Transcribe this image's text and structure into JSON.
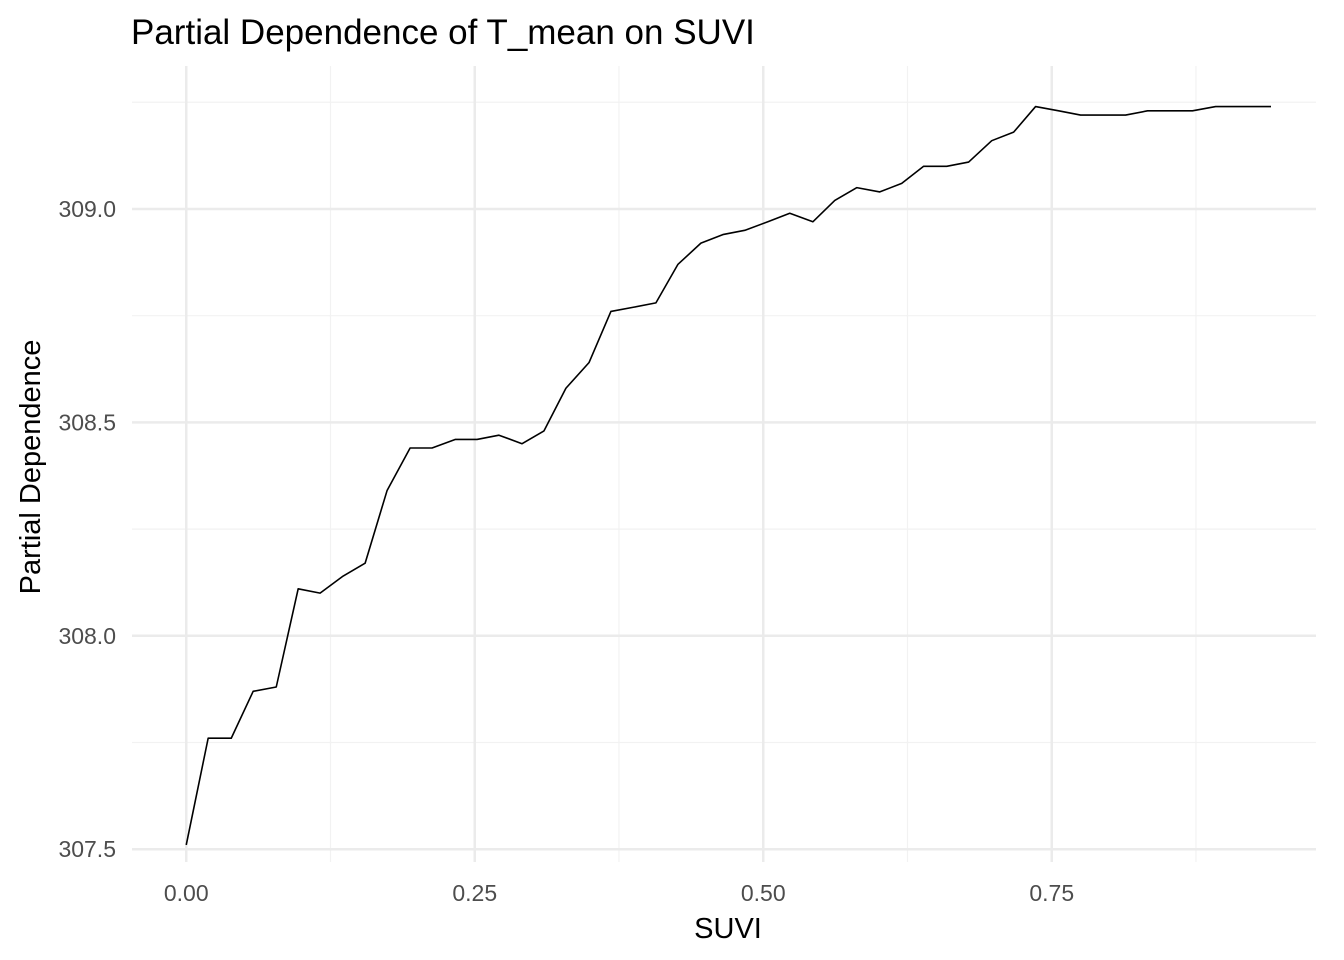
{
  "chart_data": {
    "type": "line",
    "title": "Partial Dependence of T_mean on SUVI",
    "xlabel": "SUVI",
    "ylabel": "Partial Dependence",
    "xlim": [
      -0.047,
      0.979
    ],
    "ylim": [
      307.47,
      309.335
    ],
    "x_ticks": [
      0.0,
      0.25,
      0.5,
      0.75
    ],
    "x_tick_labels": [
      "0.00",
      "0.25",
      "0.50",
      "0.75"
    ],
    "y_ticks": [
      307.5,
      308.0,
      308.5,
      309.0
    ],
    "y_tick_labels": [
      "307.5",
      "308.0",
      "308.5",
      "309.0"
    ],
    "grid": true,
    "legend": "none",
    "line_color": "#000000",
    "series": [
      {
        "x": [
          0.0,
          0.019,
          0.039,
          0.058,
          0.078,
          0.097,
          0.116,
          0.136,
          0.155,
          0.174,
          0.194,
          0.213,
          0.233,
          0.252,
          0.271,
          0.291,
          0.31,
          0.329,
          0.349,
          0.368,
          0.388,
          0.407,
          0.426,
          0.446,
          0.465,
          0.484,
          0.504,
          0.523,
          0.543,
          0.562,
          0.581,
          0.601,
          0.62,
          0.639,
          0.659,
          0.678,
          0.698,
          0.717,
          0.736,
          0.756,
          0.775,
          0.795,
          0.814,
          0.833,
          0.853,
          0.872,
          0.892,
          0.911,
          0.94
        ],
        "y": [
          307.51,
          307.76,
          307.76,
          307.87,
          307.88,
          308.11,
          308.1,
          308.14,
          308.17,
          308.34,
          308.44,
          308.44,
          308.46,
          308.46,
          308.47,
          308.45,
          308.48,
          308.58,
          308.64,
          308.76,
          308.77,
          308.78,
          308.87,
          308.92,
          308.94,
          308.95,
          308.97,
          308.99,
          308.97,
          309.02,
          309.05,
          309.04,
          309.06,
          309.1,
          309.1,
          309.11,
          309.16,
          309.18,
          309.24,
          309.23,
          309.22,
          309.22,
          309.22,
          309.23,
          309.23,
          309.23,
          309.24,
          309.24,
          309.24
        ]
      }
    ]
  }
}
